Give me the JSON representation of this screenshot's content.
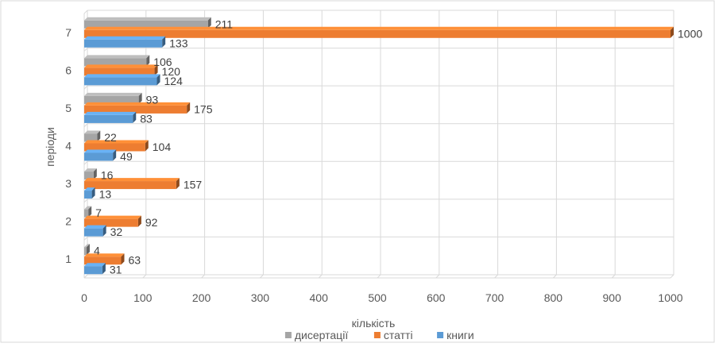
{
  "chart_data": {
    "type": "bar",
    "orientation": "horizontal",
    "style": "3d",
    "categories": [
      "1",
      "2",
      "3",
      "4",
      "5",
      "6",
      "7"
    ],
    "series": [
      {
        "name": "дисертації",
        "color": "#a5a5a5",
        "values": [
          4,
          7,
          16,
          22,
          93,
          106,
          211
        ]
      },
      {
        "name": "статті",
        "color": "#ed7d31",
        "values": [
          63,
          92,
          157,
          104,
          175,
          120,
          1000
        ]
      },
      {
        "name": "книги",
        "color": "#5b9bd5",
        "values": [
          31,
          32,
          13,
          49,
          83,
          124,
          133
        ]
      }
    ],
    "xlabel": "кількість",
    "ylabel": "періоди",
    "xlim": [
      0,
      1000
    ],
    "xticks": [
      0,
      100,
      200,
      300,
      400,
      500,
      600,
      700,
      800,
      900,
      1000
    ],
    "grid": true,
    "legend": "bottom",
    "data_labels": true
  }
}
